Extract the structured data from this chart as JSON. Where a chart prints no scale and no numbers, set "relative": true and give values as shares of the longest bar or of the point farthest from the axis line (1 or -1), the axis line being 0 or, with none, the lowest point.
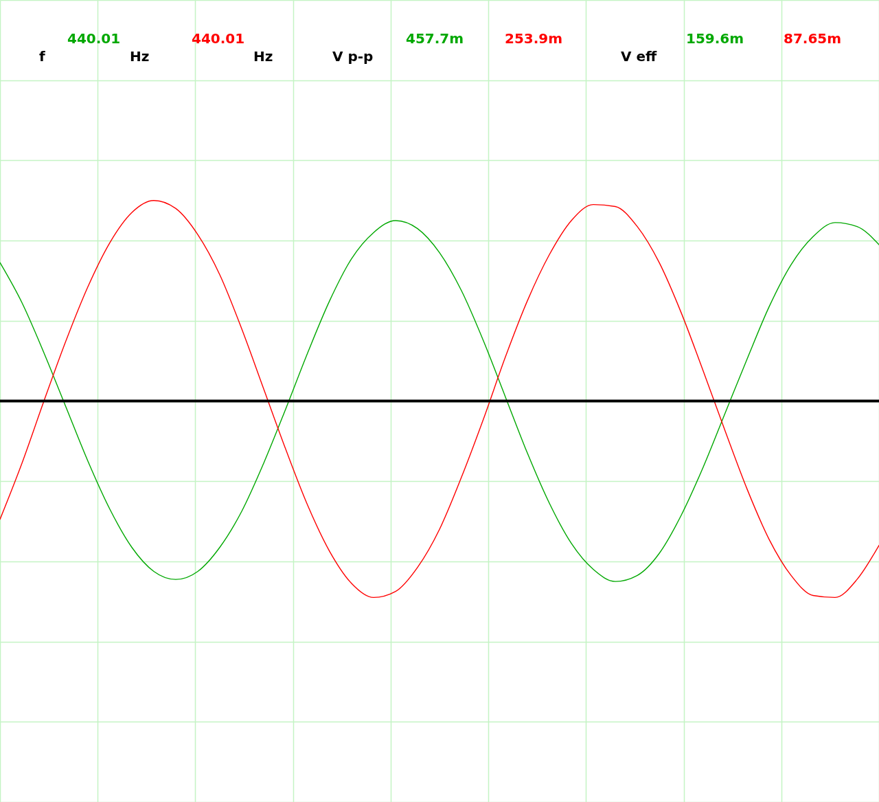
{
  "chart_data": {
    "type": "line",
    "relative": true,
    "categories": [
      null,
      null,
      null,
      null,
      null,
      null,
      null,
      null,
      null,
      null,
      null,
      null,
      null,
      null,
      null,
      null,
      null,
      null,
      null,
      null,
      null,
      null,
      null,
      null,
      null,
      null,
      null,
      null,
      null,
      null,
      null,
      null,
      null,
      null,
      null,
      null,
      null,
      null,
      null,
      null,
      null
    ],
    "series": [
      {
        "color": "#00a800",
        "values": [
          0.69,
          0.49,
          0.24,
          -0.03,
          -0.3,
          -0.54,
          -0.73,
          -0.85,
          -0.89,
          -0.85,
          -0.73,
          -0.55,
          -0.31,
          -0.04,
          0.24,
          0.5,
          0.71,
          0.84,
          0.9,
          0.86,
          0.74,
          0.55,
          0.3,
          0.02,
          -0.26,
          -0.51,
          -0.71,
          -0.84,
          -0.9,
          -0.87,
          -0.76,
          -0.57,
          -0.33,
          -0.06,
          0.21,
          0.47,
          0.68,
          0.82,
          0.89,
          0.87,
          0.78
        ]
      },
      {
        "color": "#ff0000",
        "values": [
          -0.59,
          -0.31,
          0.0,
          0.3,
          0.57,
          0.79,
          0.94,
          1.0,
          0.96,
          0.83,
          0.63,
          0.36,
          0.06,
          -0.24,
          -0.52,
          -0.75,
          -0.91,
          -0.98,
          -0.95,
          -0.83,
          -0.64,
          -0.38,
          -0.09,
          0.22,
          0.5,
          0.73,
          0.9,
          0.98,
          0.97,
          0.87,
          0.69,
          0.44,
          0.15,
          -0.15,
          -0.44,
          -0.69,
          -0.87,
          -0.97,
          -0.98,
          -0.89,
          -0.72
        ]
      }
    ],
    "grid": true,
    "ref_lines": [
      {
        "axis": "y",
        "value": 0,
        "color": "#000000"
      }
    ],
    "annotations": [
      "f",
      "440.01",
      "Hz",
      "440.01",
      "Hz",
      "V p-p",
      "457.7m",
      "253.9m",
      "V eff",
      "159.6m",
      "87.65m"
    ]
  }
}
